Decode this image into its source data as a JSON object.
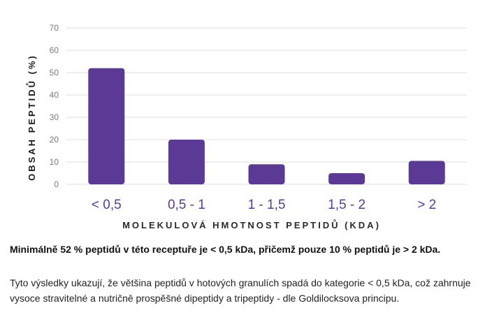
{
  "chart_data": {
    "type": "bar",
    "categories": [
      "< 0,5",
      "0,5 - 1",
      "1 - 1,5",
      "1,5 - 2",
      "> 2"
    ],
    "values": [
      52,
      20,
      9,
      5,
      10.5
    ],
    "xlabel": "MOLEKULOVÁ HMOTNOST PEPTIDŮ (KDA)",
    "ylabel": "OBSAH PEPTIDŮ (%)",
    "ylim": [
      0,
      70
    ],
    "yticks": [
      0,
      10,
      20,
      30,
      40,
      50,
      60,
      70
    ],
    "grid": true,
    "bar_color": "#5b3a96"
  },
  "text": {
    "summary": "Minimálně 52 % peptidů v této receptuře je < 0,5 kDa, přičemž pouze 10 % peptidů je > 2 kDa.",
    "explanation": "Tyto výsledky ukazují, že většina peptidů v hotových granulích spadá do kategorie < 0,5 kDa, což zahrnuje vysoce stravitelné a nutričně prospěšné dipeptidy a tripeptidy - dle Goldilocksova principu."
  }
}
